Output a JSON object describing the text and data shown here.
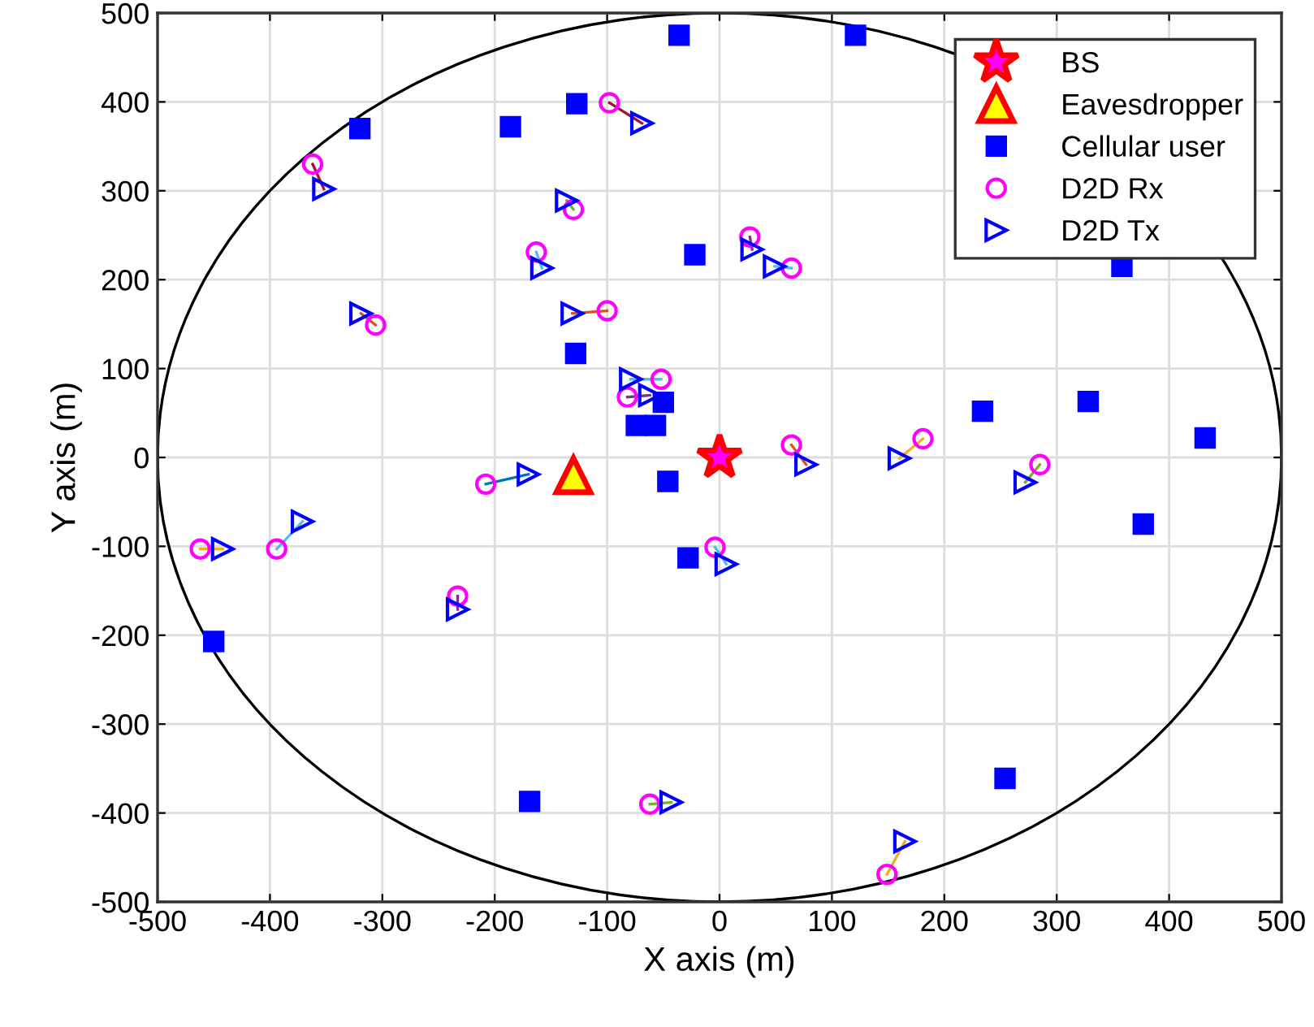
{
  "chart_data": {
    "type": "scatter",
    "xlabel": "X axis (m)",
    "ylabel": "Y axis (m)",
    "xlim": [
      -500,
      500
    ],
    "ylim": [
      -500,
      500
    ],
    "xticks": [
      -500,
      -400,
      -300,
      -200,
      -100,
      0,
      100,
      200,
      300,
      400,
      500
    ],
    "yticks": [
      -500,
      -400,
      -300,
      -200,
      -100,
      0,
      100,
      200,
      300,
      400,
      500
    ],
    "grid": true,
    "legend": "top right",
    "series": [
      {
        "type": "line",
        "color": "#a2142f",
        "marker": "none",
        "x": [
          -98,
          -69
        ],
        "values": [
          399,
          376
        ]
      },
      {
        "type": "line",
        "color": "#a2142f",
        "marker": "none",
        "x": [
          -362,
          -352
        ],
        "values": [
          330,
          302
        ]
      },
      {
        "type": "line",
        "color": "#77ac30",
        "marker": "none",
        "x": [
          -130,
          -136
        ],
        "values": [
          279,
          289
        ]
      },
      {
        "type": "line",
        "color": "#4dbeee",
        "marker": "none",
        "x": [
          -163,
          -158
        ],
        "values": [
          231,
          213
        ]
      },
      {
        "type": "line",
        "color": "#7e2f8e",
        "marker": "none",
        "x": [
          27,
          29
        ],
        "values": [
          248,
          234
        ]
      },
      {
        "type": "line",
        "color": "#4dbeee",
        "marker": "none",
        "x": [
          64,
          49
        ],
        "values": [
          213,
          215
        ]
      },
      {
        "type": "line",
        "color": "#d95319",
        "marker": "none",
        "x": [
          -306,
          -319
        ],
        "values": [
          149,
          162
        ]
      },
      {
        "type": "line",
        "color": "#d95319",
        "marker": "none",
        "x": [
          -100,
          -131
        ],
        "values": [
          165,
          162
        ]
      },
      {
        "type": "line",
        "color": "#4dbeee",
        "marker": "none",
        "x": [
          -52,
          -79
        ],
        "values": [
          88,
          88
        ]
      },
      {
        "type": "line",
        "color": "#7e2f8e",
        "marker": "none",
        "x": [
          -82,
          -62
        ],
        "values": [
          68,
          70
        ]
      },
      {
        "type": "line",
        "color": "#d95319",
        "marker": "none",
        "x": [
          64,
          77
        ],
        "values": [
          14,
          -8
        ]
      },
      {
        "type": "line",
        "color": "#edb120",
        "marker": "none",
        "x": [
          181,
          160
        ],
        "values": [
          21,
          -1
        ]
      },
      {
        "type": "line",
        "color": "#77ac30",
        "marker": "none",
        "x": [
          285,
          272
        ],
        "values": [
          -8,
          -28
        ]
      },
      {
        "type": "line",
        "color": "#4dbeee",
        "marker": "none",
        "x": [
          -4,
          6
        ],
        "values": [
          -101,
          -120
        ]
      },
      {
        "type": "line",
        "color": "#0072bd",
        "marker": "none",
        "x": [
          -208,
          -170
        ],
        "values": [
          -30,
          -19
        ]
      },
      {
        "type": "line",
        "color": "#edb120",
        "marker": "none",
        "x": [
          -462,
          -442
        ],
        "values": [
          -103,
          -103
        ]
      },
      {
        "type": "line",
        "color": "#4dbeee",
        "marker": "none",
        "x": [
          -394,
          -371
        ],
        "values": [
          -103,
          -72
        ]
      },
      {
        "type": "line",
        "color": "#7e2f8e",
        "marker": "none",
        "x": [
          -233,
          -233
        ],
        "values": [
          -156,
          -171
        ]
      },
      {
        "type": "line",
        "color": "#77ac30",
        "marker": "none",
        "x": [
          -62,
          -43
        ],
        "values": [
          -390,
          -388
        ]
      },
      {
        "type": "line",
        "color": "#edb120",
        "marker": "none",
        "x": [
          149,
          165
        ],
        "values": [
          -469,
          -432
        ]
      },
      {
        "type": "scatter",
        "name": "BS",
        "color": "#ff0000",
        "colors": [
          "#ff00ff"
        ],
        "marker": "star",
        "x": [
          0
        ],
        "values": [
          0
        ]
      },
      {
        "type": "scatter",
        "name": "Eavesdropper",
        "color": "#ff0000",
        "colors": [
          "#ffff00"
        ],
        "marker": "triangle",
        "x": [
          -130
        ],
        "values": [
          -20
        ]
      },
      {
        "type": "scatter",
        "name": "Cellular user",
        "color": "#0000ff",
        "colors": [
          "#0000ff",
          "#0000ff",
          "#0000ff",
          "#0000ff",
          "#0000ff",
          "#0000ff",
          "#0000ff",
          "#0000ff",
          "#0000ff",
          "#0000ff",
          "#0000ff",
          "#0000ff",
          "#0000ff",
          "#0000ff",
          "#0000ff",
          "#0000ff",
          "#0000ff",
          "#0000ff",
          "#0000ff",
          "#0000ff"
        ],
        "marker": "square",
        "x": [
          -36,
          121,
          -320,
          -127,
          -186,
          -22,
          -128,
          -50,
          -74,
          -57,
          -46,
          -28,
          -450,
          -169,
          254,
          234,
          328,
          432,
          377,
          358
        ],
        "values": [
          475,
          475,
          370,
          398,
          372,
          228,
          117,
          62,
          36,
          36,
          -27,
          -113,
          -207,
          -387,
          -361,
          52,
          63,
          22,
          -75,
          215
        ]
      },
      {
        "type": "scatter",
        "name": "D2D Rx",
        "color": "#ff00ff",
        "marker": "circle",
        "x": [
          -98,
          -362,
          -130,
          -163,
          27,
          64,
          -306,
          -100,
          -52,
          -82,
          64,
          181,
          285,
          -4,
          -208,
          -462,
          -394,
          -233,
          -62,
          149
        ],
        "values": [
          399,
          330,
          279,
          231,
          248,
          213,
          149,
          165,
          88,
          68,
          14,
          21,
          -8,
          -101,
          -30,
          -103,
          -103,
          -156,
          -390,
          -469
        ]
      },
      {
        "type": "scatter",
        "name": "D2D Tx",
        "color": "#0000ff",
        "marker": "triangle-right",
        "x": [
          -69,
          -352,
          -136,
          -158,
          29,
          49,
          -319,
          -131,
          -79,
          -62,
          77,
          160,
          272,
          6,
          -170,
          -442,
          -371,
          -233,
          -43,
          165
        ],
        "values": [
          376,
          302,
          289,
          213,
          234,
          215,
          162,
          162,
          88,
          70,
          -8,
          -1,
          -28,
          -120,
          -19,
          -103,
          -72,
          -171,
          -388,
          -432
        ]
      }
    ]
  }
}
